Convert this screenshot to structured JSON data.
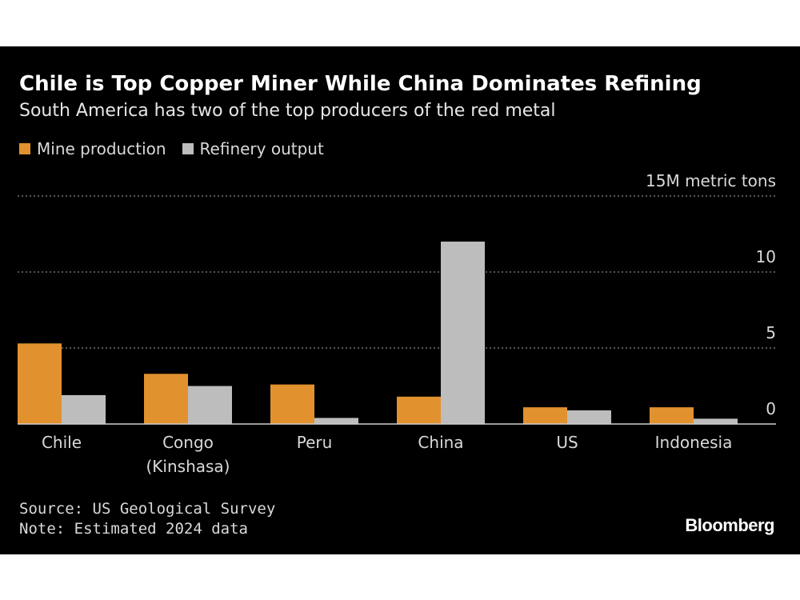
{
  "header": {
    "title": "Chile is Top Copper Miner While China Dominates Refining",
    "subtitle": "South America has two of the top producers of the red metal"
  },
  "legend": {
    "mine_label": "Mine production",
    "refinery_label": "Refinery output"
  },
  "colors": {
    "mine": "#e1922e",
    "refinery": "#bdbdbd",
    "background": "#000000",
    "grid": "#8a8a8a"
  },
  "chart_data": {
    "type": "bar",
    "categories": [
      "Chile",
      "Congo (Kinshasa)",
      "Peru",
      "China",
      "US",
      "Indonesia"
    ],
    "category_lines": [
      [
        "Chile"
      ],
      [
        "Congo",
        "(Kinshasa)"
      ],
      [
        "Peru"
      ],
      [
        "China"
      ],
      [
        "US"
      ],
      [
        "Indonesia"
      ]
    ],
    "series": [
      {
        "name": "Mine production",
        "values": [
          5.3,
          3.3,
          2.6,
          1.8,
          1.1,
          1.1
        ]
      },
      {
        "name": "Refinery output",
        "values": [
          1.9,
          2.5,
          0.4,
          12.0,
          0.9,
          0.35
        ]
      }
    ],
    "unit_label": "15M metric tons",
    "yticks": [
      0,
      5,
      10,
      15
    ],
    "ylim": [
      0,
      15
    ],
    "grid": true,
    "legend_position": "top-left"
  },
  "footer": {
    "source": "Source: US Geological Survey",
    "note": "Note: Estimated 2024 data",
    "brand": "Bloomberg"
  }
}
